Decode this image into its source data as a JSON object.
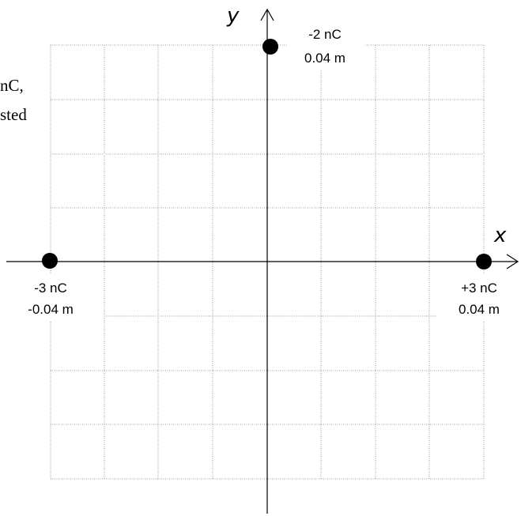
{
  "background_text": {
    "line1": "nC,",
    "line2": "sted"
  },
  "axes": {
    "x_label": "x",
    "y_label": "y"
  },
  "charges": [
    {
      "id": "top",
      "charge": "-2 nC",
      "position": "0.04 m"
    },
    {
      "id": "left",
      "charge": "-3 nC",
      "position": "-0.04 m"
    },
    {
      "id": "right",
      "charge": "+3 nC",
      "position": "0.04 m"
    }
  ],
  "colors": {
    "grid": "#9a9a9a",
    "axis": "#000000",
    "charge_dot": "#000000"
  }
}
